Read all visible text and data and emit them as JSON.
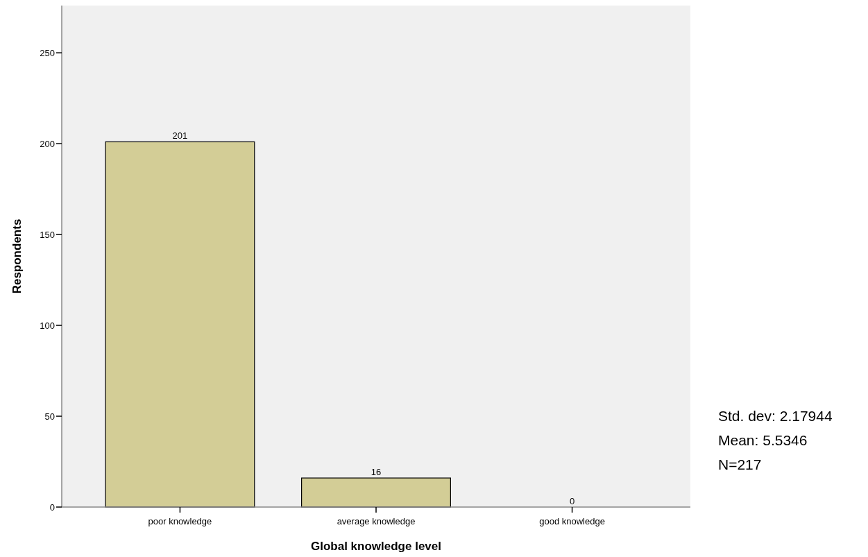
{
  "chart_data": {
    "type": "bar",
    "xlabel": "Global knowledge level",
    "ylabel": "Respondents",
    "categories": [
      "poor knowledge",
      "average knowledge",
      "good knowledge"
    ],
    "values": [
      201,
      16,
      0
    ],
    "color": "#d3cd96",
    "ylim": [
      0,
      276
    ],
    "yticks": [
      0,
      50,
      100,
      150,
      200,
      250
    ],
    "grid": false,
    "data_labels": true,
    "annotations": [
      "Std. dev: 2.17944",
      "Mean: 5.5346",
      "N=217"
    ]
  }
}
